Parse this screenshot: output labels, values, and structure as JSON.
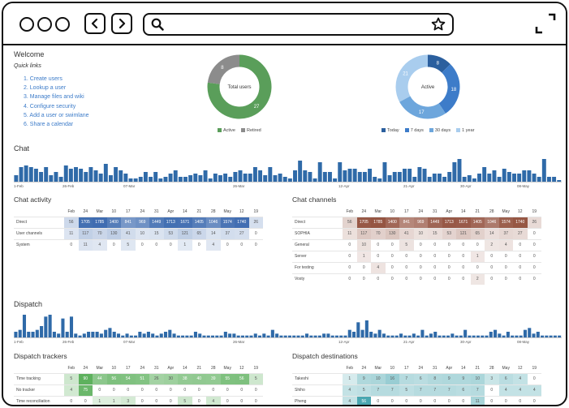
{
  "welcome": {
    "title": "Welcome",
    "quick_links_title": "Quick links",
    "links": [
      "1. Create users",
      "2. Lookup a user",
      "3. Manage files and wiki",
      "4. Configure security",
      "5. Add a user or swimlane",
      "6. Share a calendar"
    ]
  },
  "total_users": {
    "center_label": "Total users",
    "segments": [
      {
        "label": "Active",
        "value": 27,
        "color": "#5a9e5a"
      },
      {
        "label": "Retired",
        "value": 8,
        "color": "#8c8c8c"
      }
    ]
  },
  "active": {
    "center_label": "Active",
    "segments": [
      {
        "label": "Today",
        "value": 8,
        "color": "#2b5f9e"
      },
      {
        "label": "7 days",
        "value": 18,
        "color": "#3d7cc9"
      },
      {
        "label": "30 days",
        "value": 17,
        "color": "#6da6dc"
      },
      {
        "label": "1 year",
        "value": 21,
        "color": "#a9cdee"
      }
    ]
  },
  "chat": {
    "title": "Chat",
    "axis_labels": [
      "1-Feb",
      "26-Feb",
      "07-Mar",
      "26-Mar",
      "12-Apr",
      "21-Apr",
      "30-Apr",
      "08-May"
    ],
    "bars": [
      4,
      9,
      10,
      9,
      8,
      6,
      9,
      4,
      6,
      3,
      10,
      8,
      9,
      8,
      6,
      9,
      7,
      5,
      11,
      4,
      9,
      7,
      5,
      2,
      2,
      3,
      6,
      3,
      6,
      2,
      3,
      5,
      7,
      3,
      3,
      4,
      5,
      4,
      7,
      2,
      5,
      4,
      5,
      3,
      6,
      7,
      5,
      5,
      9,
      7,
      4,
      9,
      4,
      5,
      3,
      2,
      7,
      13,
      7,
      6,
      2,
      12,
      6,
      6,
      2,
      12,
      7,
      8,
      8,
      6,
      6,
      8,
      3,
      2,
      12,
      4,
      6,
      6,
      8,
      8,
      3,
      9,
      8,
      3,
      5,
      5,
      3,
      6,
      12,
      14,
      3,
      4,
      2,
      5,
      9,
      5,
      7,
      3,
      8,
      6,
      5,
      5,
      7,
      7,
      5,
      3,
      14,
      3,
      3,
      1
    ],
    "color": "#2f6aa8"
  },
  "chat_activity": {
    "title": "Chat activity",
    "columns": [
      "Feb",
      "24",
      "Mar",
      "10",
      "17",
      "24",
      "31",
      "Apr",
      "14",
      "21",
      "28",
      "May",
      "12",
      "19"
    ],
    "rows": [
      {
        "label": "Direct",
        "values": [
          "56",
          "1705",
          "1785",
          "1400",
          "841",
          "969",
          "1449",
          "1713",
          "1671",
          "1405",
          "1046",
          "1574",
          "1740",
          "26"
        ]
      },
      {
        "label": "User channels",
        "values": [
          "11",
          "117",
          "70",
          "130",
          "41",
          "10",
          "15",
          "53",
          "121",
          "65",
          "14",
          "37",
          "27",
          "0"
        ]
      },
      {
        "label": "System",
        "values": [
          "0",
          "11",
          "4",
          "0",
          "5",
          "0",
          "0",
          "0",
          "1",
          "0",
          "4",
          "0",
          "0",
          "0"
        ]
      }
    ]
  },
  "chat_channels": {
    "title": "Chat channels",
    "columns": [
      "Feb",
      "24",
      "Mar",
      "10",
      "17",
      "24",
      "31",
      "Apr",
      "14",
      "21",
      "28",
      "May",
      "12",
      "19"
    ],
    "rows": [
      {
        "label": "Direct",
        "values": [
          "56",
          "1705",
          "1785",
          "1400",
          "841",
          "969",
          "1449",
          "1713",
          "1671",
          "1405",
          "1046",
          "1574",
          "1740",
          "26"
        ]
      },
      {
        "label": "SOPHIA",
        "values": [
          "11",
          "117",
          "70",
          "130",
          "41",
          "10",
          "15",
          "53",
          "121",
          "65",
          "14",
          "37",
          "27",
          "0"
        ]
      },
      {
        "label": "General",
        "values": [
          "0",
          "10",
          "0",
          "0",
          "5",
          "0",
          "0",
          "0",
          "0",
          "0",
          "2",
          "4",
          "0",
          "0"
        ]
      },
      {
        "label": "Server",
        "values": [
          "0",
          "1",
          "0",
          "0",
          "0",
          "0",
          "0",
          "0",
          "0",
          "1",
          "0",
          "0",
          "0",
          "0"
        ]
      },
      {
        "label": "For testing",
        "values": [
          "0",
          "0",
          "4",
          "0",
          "0",
          "0",
          "0",
          "0",
          "0",
          "0",
          "0",
          "0",
          "0",
          "0"
        ]
      },
      {
        "label": "Vosty",
        "values": [
          "0",
          "0",
          "0",
          "0",
          "0",
          "0",
          "0",
          "0",
          "0",
          "2",
          "0",
          "0",
          "0",
          "0"
        ]
      }
    ]
  },
  "dispatch": {
    "title": "Dispatch",
    "axis_labels": [
      "1-Feb",
      "26-Feb",
      "07-Mar",
      "26-Mar",
      "12-Apr",
      "21-Apr",
      "30-Apr",
      "08-May"
    ],
    "bars": [
      3,
      4,
      12,
      3,
      3,
      4,
      6,
      11,
      12,
      3,
      2,
      10,
      3,
      11,
      2,
      1,
      2,
      3,
      3,
      3,
      2,
      4,
      5,
      3,
      2,
      1,
      2,
      1,
      1,
      3,
      2,
      3,
      2,
      1,
      2,
      3,
      4,
      2,
      1,
      1,
      1,
      1,
      3,
      2,
      1,
      1,
      1,
      1,
      1,
      3,
      2,
      2,
      1,
      1,
      1,
      1,
      2,
      1,
      2,
      1,
      4,
      2,
      1,
      1,
      1,
      1,
      1,
      1,
      2,
      1,
      1,
      1,
      2,
      2,
      1,
      1,
      1,
      1,
      4,
      3,
      8,
      4,
      9,
      3,
      2,
      4,
      2,
      1,
      1,
      1,
      2,
      1,
      1,
      2,
      1,
      4,
      1,
      2,
      3,
      1,
      1,
      1,
      2,
      1,
      1,
      4,
      1,
      1,
      1,
      1,
      1,
      3,
      4,
      2,
      1,
      3,
      1,
      1,
      1,
      4,
      5,
      2,
      3,
      1,
      1,
      1,
      1,
      1
    ],
    "color": "#2f6aa8"
  },
  "dispatch_trackers": {
    "title": "Dispatch trackers",
    "columns": [
      "Feb",
      "24",
      "Mar",
      "10",
      "17",
      "24",
      "31",
      "Apr",
      "14",
      "21",
      "28",
      "May",
      "12",
      "19"
    ],
    "rows": [
      {
        "label": "Time tracking",
        "values": [
          "5",
          "90",
          "44",
          "56",
          "54",
          "51",
          "26",
          "30",
          "38",
          "40",
          "39",
          "55",
          "56",
          "5"
        ]
      },
      {
        "label": "No tracker",
        "values": [
          "4",
          "75",
          "0",
          "0",
          "0",
          "0",
          "0",
          "0",
          "0",
          "0",
          "0",
          "0",
          "0",
          "0"
        ]
      },
      {
        "label": "Time reconciliation",
        "values": [
          "0",
          "0",
          "1",
          "1",
          "3",
          "0",
          "0",
          "0",
          "5",
          "0",
          "4",
          "0",
          "0",
          "0"
        ]
      }
    ]
  },
  "dispatch_destinations": {
    "title": "Dispatch destinations",
    "columns": [
      "Feb",
      "24",
      "Mar",
      "10",
      "17",
      "24",
      "31",
      "Apr",
      "14",
      "21",
      "28",
      "May",
      "12",
      "19"
    ],
    "rows": [
      {
        "label": "Takeshi",
        "values": [
          "1",
          "9",
          "10",
          "16",
          "7",
          "6",
          "8",
          "9",
          "9",
          "10",
          "3",
          "6",
          "4",
          "0"
        ]
      },
      {
        "label": "Shiho",
        "values": [
          "4",
          "5",
          "7",
          "7",
          "5",
          "7",
          "7",
          "7",
          "6",
          "7",
          "0",
          "4",
          "4",
          "4"
        ]
      },
      {
        "label": "Pheng",
        "values": [
          "4",
          "56",
          "0",
          "0",
          "0",
          "0",
          "0",
          "0",
          "0",
          "11",
          "0",
          "0",
          "0",
          "0"
        ]
      }
    ]
  }
}
